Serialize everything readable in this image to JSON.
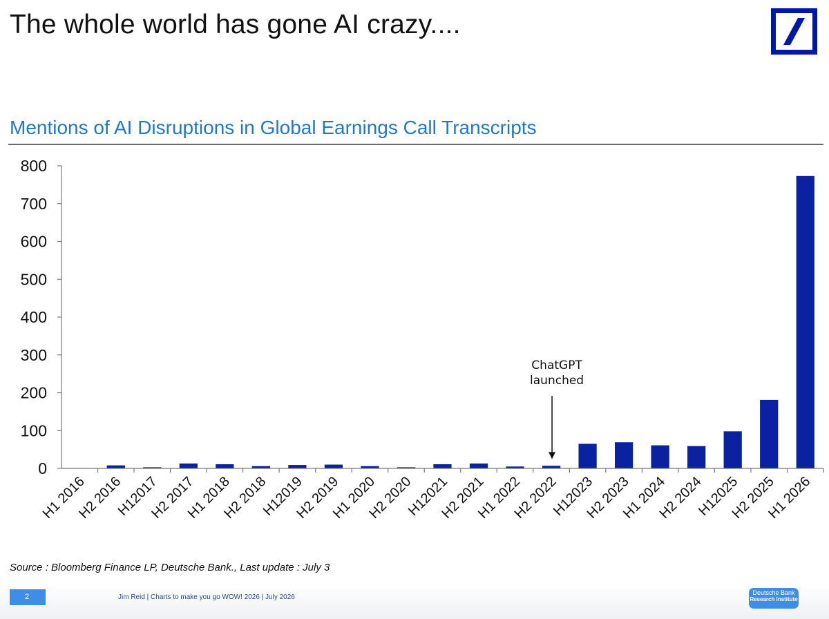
{
  "header": {
    "title": "The whole world has gone AI crazy...."
  },
  "brand": {
    "logo_color": "#0018a8"
  },
  "chart_data": {
    "type": "bar",
    "title": "Mentions of AI Disruptions in Global Earnings Call Transcripts",
    "xlabel": "",
    "ylabel": "",
    "ylim": [
      0,
      800
    ],
    "yticks": [
      0,
      100,
      200,
      300,
      400,
      500,
      600,
      700,
      800
    ],
    "grid": false,
    "bar_color": "#0a22a0",
    "categories": [
      "H1 2016",
      "H2 2016",
      "H12017",
      "H2 2017",
      "H1 2018",
      "H2 2018",
      "H12019",
      "H2 2019",
      "H1 2020",
      "H2 2020",
      "H12021",
      "H2 2021",
      "H1 2022",
      "H2 2022",
      "H12023",
      "H2 2023",
      "H1 2024",
      "H2 2024",
      "H12025",
      "H2 2025",
      "H1 2026"
    ],
    "values": [
      1,
      8,
      3,
      13,
      11,
      6,
      9,
      10,
      6,
      3,
      11,
      13,
      5,
      7,
      65,
      69,
      61,
      59,
      98,
      181,
      773
    ],
    "annotations": [
      {
        "text_line1": "ChatGPT",
        "text_line2": "launched",
        "category": "H2 2022",
        "arrow_to_value": 25
      }
    ]
  },
  "footer": {
    "source": "Source : Bloomberg Finance LP, Deutsche Bank., Last update : July 3",
    "page_number": "2",
    "author_line": "Jim Reid | Charts to make you go WOW! 2026  | July 2026",
    "badge_line1": "Deutsche Bank",
    "badge_line2": "Research Institute"
  }
}
